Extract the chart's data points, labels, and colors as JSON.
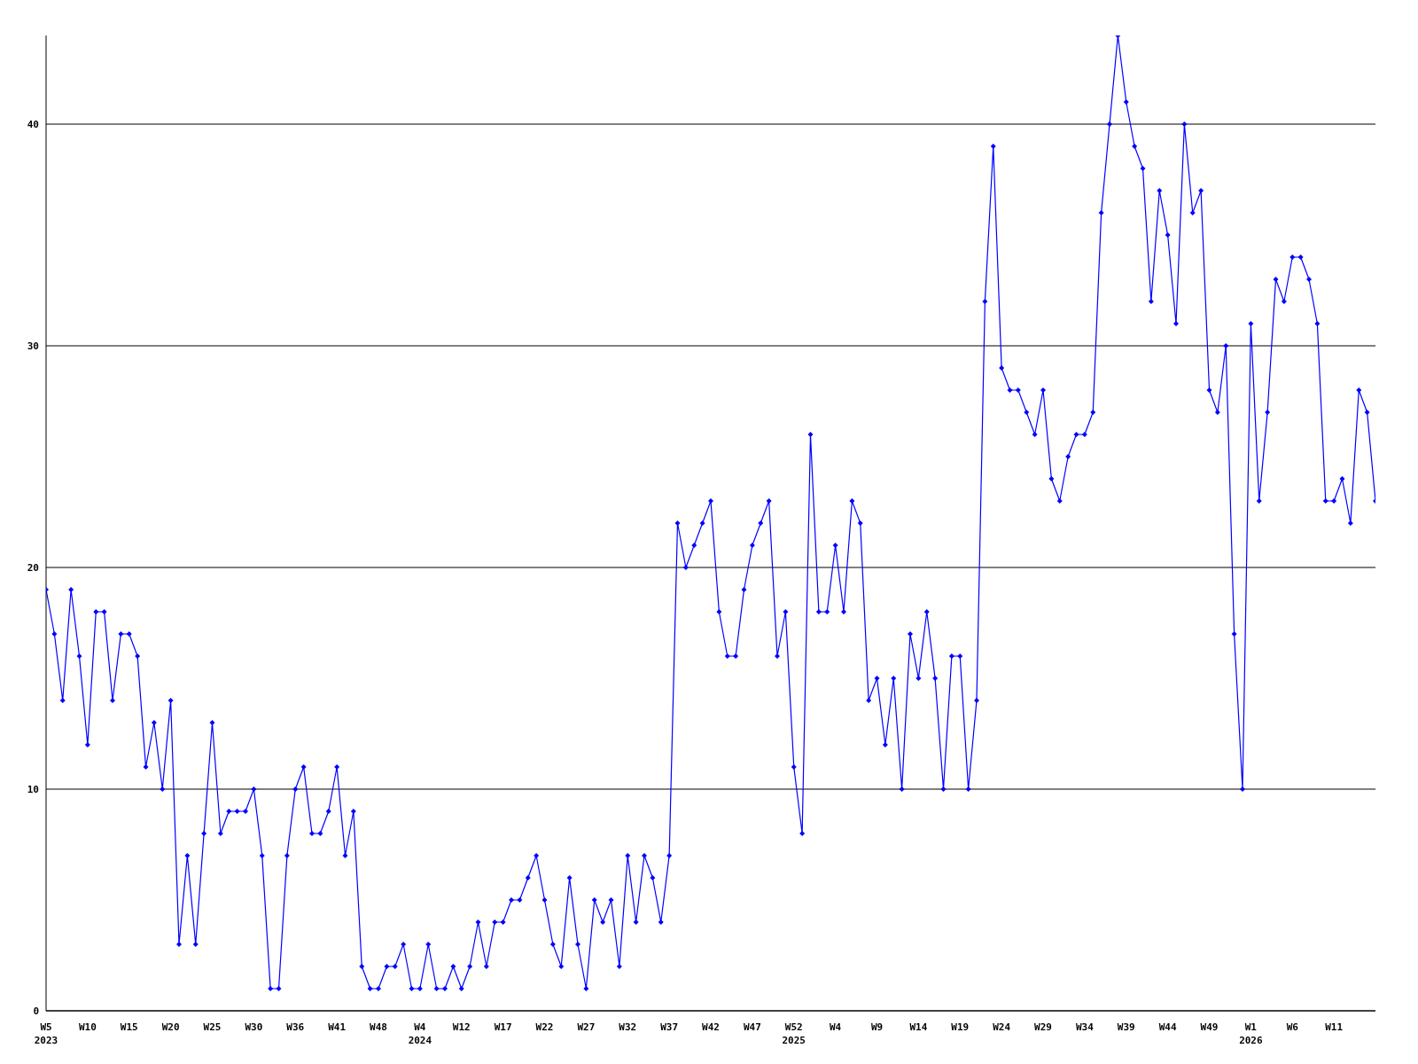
{
  "chart_data": {
    "type": "line",
    "categories": [
      "W5\n2023",
      null,
      null,
      null,
      null,
      "W10",
      null,
      null,
      null,
      null,
      "W15",
      null,
      null,
      null,
      null,
      "W20",
      null,
      null,
      null,
      null,
      "W25",
      null,
      null,
      null,
      null,
      "W30",
      null,
      null,
      null,
      null,
      "W36",
      null,
      null,
      null,
      null,
      "W41",
      null,
      null,
      null,
      null,
      "W48",
      null,
      null,
      null,
      null,
      "W4\n2024",
      null,
      null,
      null,
      null,
      "W12",
      null,
      null,
      null,
      null,
      "W17",
      null,
      null,
      null,
      null,
      "W22",
      null,
      null,
      null,
      null,
      "W27",
      null,
      null,
      null,
      null,
      "W32",
      null,
      null,
      null,
      null,
      "W37",
      null,
      null,
      null,
      null,
      "W42",
      null,
      null,
      null,
      null,
      "W47",
      null,
      null,
      null,
      null,
      "W52\n2025",
      null,
      null,
      null,
      null,
      "W4",
      null,
      null,
      null,
      null,
      "W9",
      null,
      null,
      null,
      null,
      "W14",
      null,
      null,
      null,
      null,
      "W19",
      null,
      null,
      null,
      null,
      "W24",
      null,
      null,
      null,
      null,
      "W29",
      null,
      null,
      null,
      null,
      "W34",
      null,
      null,
      null,
      null,
      "W39",
      null,
      null,
      null,
      null,
      "W44",
      null,
      null,
      null,
      null,
      "W49",
      null,
      null,
      null,
      null,
      "W1\n2026",
      null,
      null,
      null,
      null,
      "W6",
      null,
      null,
      null,
      null,
      "W11",
      null,
      null,
      null,
      null,
      null
    ],
    "series": [
      {
        "color": "#0000ff",
        "values": [
          19,
          17,
          14,
          19,
          16,
          12,
          18,
          18,
          14,
          17,
          17,
          16,
          11,
          13,
          10,
          14,
          3,
          7,
          3,
          8,
          13,
          8,
          9,
          9,
          9,
          10,
          7,
          1,
          1,
          7,
          10,
          11,
          8,
          8,
          9,
          11,
          7,
          9,
          2,
          1,
          1,
          2,
          2,
          3,
          1,
          1,
          3,
          1,
          1,
          2,
          1,
          2,
          4,
          2,
          4,
          4,
          5,
          5,
          6,
          7,
          5,
          3,
          2,
          6,
          3,
          1,
          5,
          4,
          5,
          2,
          7,
          4,
          7,
          6,
          4,
          7,
          22,
          20,
          21,
          22,
          23,
          18,
          16,
          16,
          19,
          21,
          22,
          23,
          16,
          18,
          11,
          8,
          26,
          18,
          18,
          21,
          18,
          23,
          22,
          14,
          15,
          12,
          15,
          10,
          17,
          15,
          18,
          15,
          10,
          16,
          16,
          10,
          14,
          32,
          39,
          29,
          28,
          28,
          27,
          26,
          28,
          24,
          23,
          25,
          26,
          26,
          27,
          36,
          40,
          44,
          41,
          39,
          38,
          32,
          37,
          35,
          31,
          40,
          36,
          37,
          28,
          27,
          30,
          17,
          10,
          31,
          23,
          27,
          33,
          32,
          34,
          34,
          33,
          31,
          23,
          23,
          24,
          22,
          28,
          27,
          23
        ]
      }
    ],
    "ylim": [
      0,
      44
    ],
    "yticks": [
      0,
      10,
      20,
      30,
      40
    ],
    "grid": "y",
    "marker": "diamond",
    "line_style": "solid",
    "legend": false
  }
}
